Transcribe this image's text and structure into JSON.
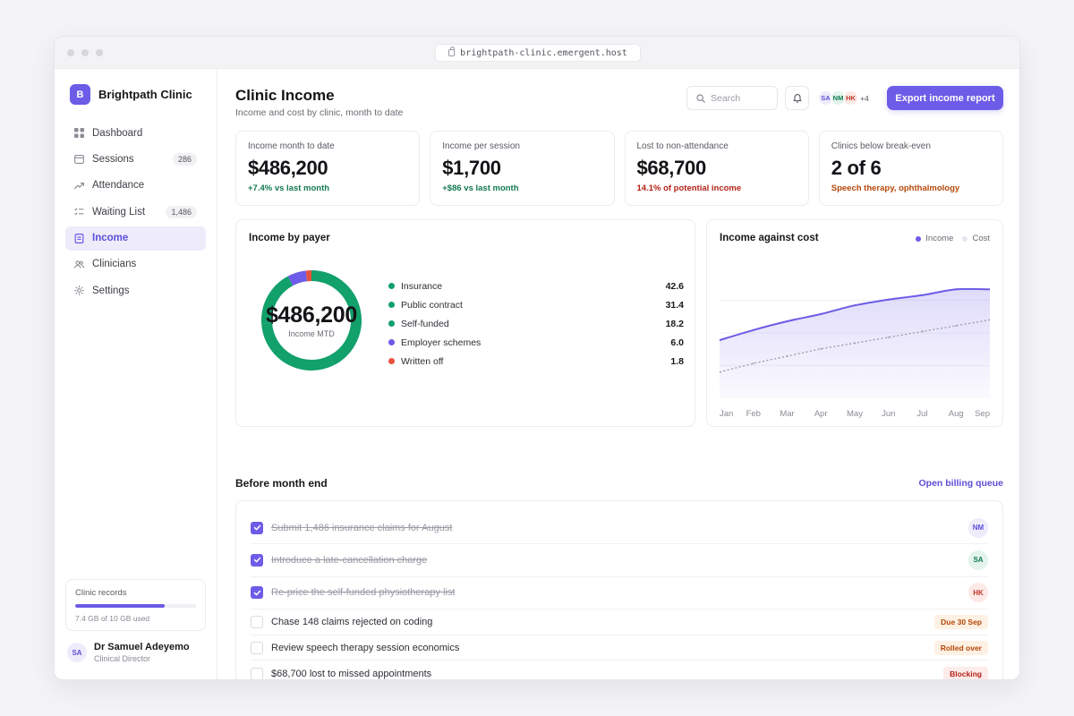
{
  "browser": {
    "url": "brightpath-clinic.emergent.host"
  },
  "brand": {
    "logo_letter": "B",
    "name": "Brightpath Clinic"
  },
  "sidebar": {
    "items": [
      {
        "label": "Dashboard",
        "icon": "dashboard-grid-icon",
        "badge": "",
        "active": false
      },
      {
        "label": "Sessions",
        "icon": "calendar-icon",
        "badge": "286",
        "active": false
      },
      {
        "label": "Attendance",
        "icon": "trending-up-icon",
        "badge": "",
        "active": false
      },
      {
        "label": "Waiting List",
        "icon": "checklist-icon",
        "badge": "1,486",
        "active": false
      },
      {
        "label": "Income",
        "icon": "document-icon",
        "badge": "",
        "active": true
      },
      {
        "label": "Clinicians",
        "icon": "users-icon",
        "badge": "",
        "active": false
      },
      {
        "label": "Settings",
        "icon": "settings-icon",
        "badge": "",
        "active": false
      }
    ],
    "records": {
      "label": "Clinic records",
      "usage_text": "7.4 GB of 10 GB used",
      "used_fraction": 0.74
    },
    "user": {
      "initials": "SA",
      "name": "Dr Samuel Adeyemo",
      "role": "Clinical Director"
    }
  },
  "header": {
    "title": "Clinic Income",
    "subtitle": "Income and cost by clinic, month to date",
    "search_placeholder": "Search",
    "avatars": [
      {
        "initials": "SA",
        "bg": "#eeecfb",
        "fg": "#5b4fd6"
      },
      {
        "initials": "NM",
        "bg": "#e3f4ec",
        "fg": "#137a4f"
      },
      {
        "initials": "HK",
        "bg": "#fde9e6",
        "fg": "#c0392b"
      }
    ],
    "avatars_more": "+4",
    "export_label": "Export income report"
  },
  "kpis": [
    {
      "label": "Income month to date",
      "value": "$486,200",
      "delta": "+7.4% vs last month",
      "color": "#137a4f"
    },
    {
      "label": "Income per session",
      "value": "$1,700",
      "delta": "+$86 vs last month",
      "color": "#137a4f"
    },
    {
      "label": "Lost to non-attendance",
      "value": "$68,700",
      "delta": "14.1% of potential income",
      "color": "#b42318"
    },
    {
      "label": "Clinics below break-even",
      "value": "2 of 6",
      "delta": "Speech therapy, ophthalmology",
      "color": "#b54708"
    }
  ],
  "payer_card": {
    "title": "Income by payer",
    "center_value": "$486,200",
    "center_caption": "Income MTD"
  },
  "cost_card": {
    "title": "Income against cost",
    "legend_income": "Income",
    "legend_cost": "Cost"
  },
  "colors": {
    "accent": "#6c5ce7",
    "green": "#12a06b",
    "red": "#e8533f",
    "cost_line": "#9a9aa5"
  },
  "chart_data": [
    {
      "type": "pie",
      "title": "Income by payer",
      "categories": [
        "Insurance",
        "Public contract",
        "Self-funded",
        "Employer schemes",
        "Written off"
      ],
      "values": [
        42.6,
        31.4,
        18.2,
        6.0,
        1.8
      ],
      "display_values": [
        "42.6",
        "31.4",
        "18.2",
        "6.0",
        "1.8"
      ],
      "colors": [
        "#12a06b",
        "#12a06b",
        "#12a06b",
        "#6c5ce7",
        "#e8533f"
      ]
    },
    {
      "type": "area",
      "title": "Income against cost",
      "categories": [
        "Jan",
        "Feb",
        "Mar",
        "Apr",
        "May",
        "Jun",
        "Jul",
        "Aug",
        "Sep"
      ],
      "series": [
        {
          "name": "Income",
          "values": [
            40,
            47,
            53,
            58,
            64,
            68,
            71,
            75,
            75
          ],
          "color": "#6c5ce7"
        },
        {
          "name": "Cost",
          "values": [
            18,
            24,
            29,
            34,
            38,
            42,
            46,
            50,
            54
          ],
          "color": "#9a9aa5"
        }
      ],
      "ylim": [
        0,
        90
      ],
      "grid": true,
      "legend": "top-right"
    }
  ],
  "tasks_section": {
    "title": "Before month end",
    "link": "Open billing queue",
    "tasks": [
      {
        "text": "Submit 1,486 insurance claims for August",
        "done": true,
        "assignee": "NM",
        "assignee_bg": "#eeecfb",
        "assignee_fg": "#5b4fd6"
      },
      {
        "text": "Introduce a late-cancellation charge",
        "done": true,
        "assignee": "SA",
        "assignee_bg": "#e3f4ec",
        "assignee_fg": "#137a4f"
      },
      {
        "text": "Re-price the self-funded physiotherapy list",
        "done": true,
        "assignee": "HK",
        "assignee_bg": "#fde9e6",
        "assignee_fg": "#c0392b"
      },
      {
        "text": "Chase 148 claims rejected on coding",
        "done": false,
        "tag": "Due 30 Sep",
        "tag_bg": "#fdf1e4",
        "tag_fg": "#b54708"
      },
      {
        "text": "Review speech therapy session economics",
        "done": false,
        "tag": "Rolled over",
        "tag_bg": "#fdf1e4",
        "tag_fg": "#b54708"
      },
      {
        "text": "$68,700 lost to missed appointments",
        "done": false,
        "tag": "Blocking",
        "tag_bg": "#fdecea",
        "tag_fg": "#b42318"
      }
    ]
  }
}
